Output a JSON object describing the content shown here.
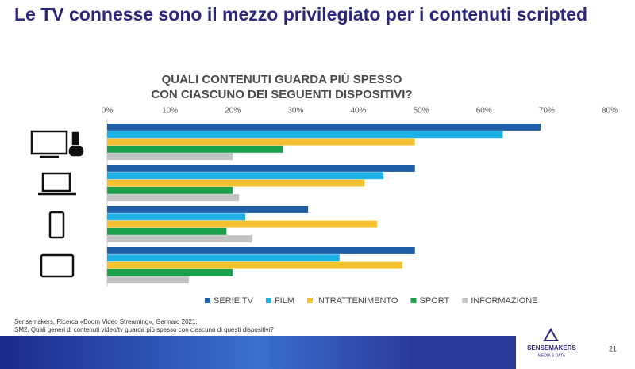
{
  "header": {
    "title": "Le TV connesse sono il mezzo privilegiato per i contenuti scripted"
  },
  "chart_data": {
    "type": "hbar",
    "title": [
      "QUALI CONTENUTI GUARDA PIÙ SPESSO",
      "CON CIASCUNO DEI SEGUENTI DISPOSITIVI?"
    ],
    "categories": [
      null,
      null,
      null,
      null
    ],
    "series": [
      {
        "name": "SERIE TV",
        "color": "#1f5fa8",
        "values": [
          69,
          49,
          32,
          49
        ]
      },
      {
        "name": "FILM",
        "color": "#1eb1e6",
        "values": [
          63,
          44,
          22,
          37
        ]
      },
      {
        "name": "INTRATTENIMENTO",
        "color": "#f6c12f",
        "values": [
          49,
          41,
          43,
          47
        ]
      },
      {
        "name": "SPORT",
        "color": "#1a9f4a",
        "values": [
          28,
          20,
          19,
          20
        ]
      },
      {
        "name": "INFORMAZIONE",
        "color": "#c2c2c2",
        "values": [
          20,
          21,
          23,
          13
        ]
      }
    ],
    "xlim": [
      0,
      80
    ],
    "xticks": [
      {
        "value": 0,
        "label": "0%"
      },
      {
        "value": 10,
        "label": "10%"
      },
      {
        "value": 20,
        "label": "20%"
      },
      {
        "value": 30,
        "label": "30%"
      },
      {
        "value": 40,
        "label": "40%"
      },
      {
        "value": 50,
        "label": "50%"
      },
      {
        "value": 60,
        "label": "60%"
      },
      {
        "value": 70,
        "label": "70%"
      },
      {
        "value": 80,
        "label": "80%"
      }
    ],
    "grid": false,
    "legend": "bottom"
  },
  "footer": {
    "source": "Sensemakers, Ricerca «Boom Video Streaming», Gennaio 2021.",
    "question": "SM2. Quali generi di contenuti video/tv guarda più spesso con ciascuno di questi dispositivi?",
    "logo": "SENSEMAKERS",
    "logo_sub": "MEDIA & DATA",
    "page": "21"
  }
}
